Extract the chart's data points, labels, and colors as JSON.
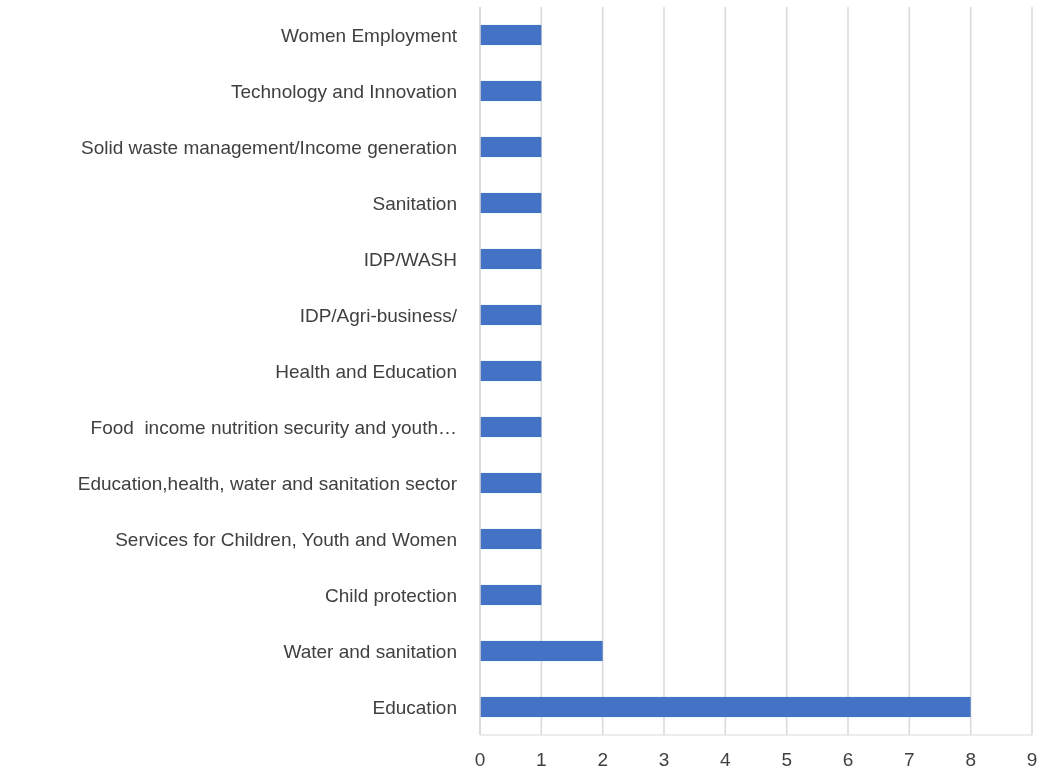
{
  "chart_data": {
    "type": "bar",
    "orientation": "horizontal",
    "categories": [
      "Women Employment",
      "Technology and Innovation",
      "Solid waste management/Income generation",
      "Sanitation",
      "IDP/WASH",
      "IDP/Agri-business/",
      "Health and Education",
      "Food  income nutrition security and youth…",
      "Education,health, water and sanitation sector",
      "Services for Children, Youth and Women",
      "Child protection",
      "Water and sanitation",
      "Education"
    ],
    "values": [
      1,
      1,
      1,
      1,
      1,
      1,
      1,
      1,
      1,
      1,
      1,
      2,
      8
    ],
    "color": "#4472c4",
    "xlim": [
      0,
      9
    ],
    "xticks": [
      0,
      1,
      2,
      3,
      4,
      5,
      6,
      7,
      8,
      9
    ],
    "grid": "x"
  }
}
